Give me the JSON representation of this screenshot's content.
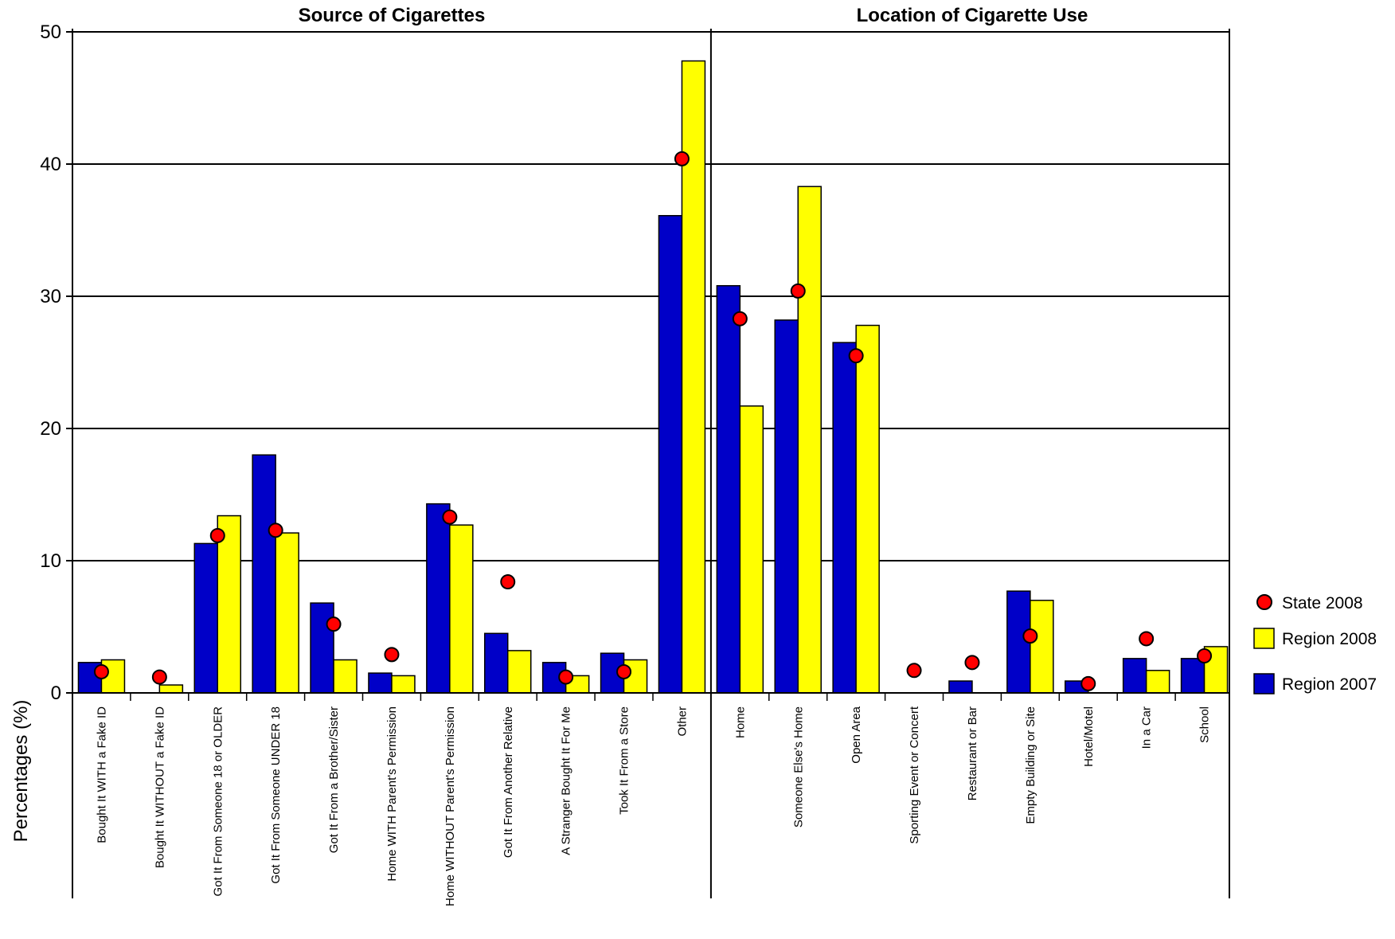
{
  "chart_data": {
    "type": "bar",
    "ylabel": "Percentages (%)",
    "ylim": [
      0,
      50
    ],
    "yticks": [
      0,
      10,
      20,
      30,
      40,
      50
    ],
    "grid": true,
    "legend_position": "right",
    "legend": [
      {
        "key": "state2008",
        "label": "State 2008",
        "marker": "circle"
      },
      {
        "key": "region2008",
        "label": "Region 2008",
        "marker": "square"
      },
      {
        "key": "region2007",
        "label": "Region 2007",
        "marker": "square"
      }
    ],
    "colors": {
      "region2007": "#0000c8",
      "region2008": "#ffff00",
      "state2008": "#ff0000"
    },
    "panels": [
      {
        "title": "Source of Cigarettes",
        "categories": [
          "Bought It WITH a Fake ID",
          "Bought It WITHOUT a Fake ID",
          "Got It From Someone 18 or OLDER",
          "Got It From Someone UNDER 18",
          "Got It From a Brother/Sister",
          "Home WITH Parent's Permission",
          "Home WITHOUT Parent's Permission",
          "Got It From Another Relative",
          "A Stranger Bought It For Me",
          "Took It From a Store",
          "Other"
        ],
        "series": [
          {
            "name": "Region 2007",
            "key": "region2007",
            "values": [
              2.3,
              0,
              11.3,
              18.0,
              6.8,
              1.5,
              14.3,
              4.5,
              2.3,
              3.0,
              36.1
            ]
          },
          {
            "name": "Region 2008",
            "key": "region2008",
            "values": [
              2.5,
              0.6,
              13.4,
              12.1,
              2.5,
              1.3,
              12.7,
              3.2,
              1.3,
              2.5,
              47.8
            ]
          },
          {
            "name": "State 2008",
            "key": "state2008",
            "values": [
              1.6,
              1.2,
              11.9,
              12.3,
              5.2,
              2.9,
              13.3,
              8.4,
              1.2,
              1.6,
              40.4
            ]
          }
        ]
      },
      {
        "title": "Location of Cigarette Use",
        "categories": [
          "Home",
          "Someone Else's Home",
          "Open Area",
          "Sporting Event or Concert",
          "Restaurant or Bar",
          "Empty Building or Site",
          "Hotel/Motel",
          "In a Car",
          "School"
        ],
        "series": [
          {
            "name": "Region 2007",
            "key": "region2007",
            "values": [
              30.8,
              28.2,
              26.5,
              0,
              0.9,
              7.7,
              0.9,
              2.6,
              2.6
            ]
          },
          {
            "name": "Region 2008",
            "key": "region2008",
            "values": [
              21.7,
              38.3,
              27.8,
              0,
              0,
              7.0,
              0,
              1.7,
              3.5
            ]
          },
          {
            "name": "State 2008",
            "key": "state2008",
            "values": [
              28.3,
              30.4,
              25.5,
              1.7,
              2.3,
              4.3,
              0.7,
              4.1,
              2.8
            ]
          }
        ]
      }
    ]
  }
}
